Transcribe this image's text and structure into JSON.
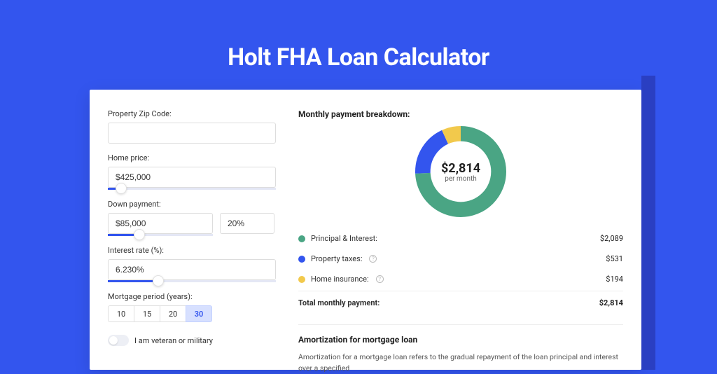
{
  "page": {
    "title": "Holt FHA Loan Calculator",
    "background_color": "#3355ee",
    "accent_color": "#2a3fc2"
  },
  "form": {
    "zip": {
      "label": "Property Zip Code:",
      "value": ""
    },
    "home_price": {
      "label": "Home price:",
      "value": "$425,000",
      "slider_pct": 8
    },
    "down_payment": {
      "label": "Down payment:",
      "amount": "$85,000",
      "pct": "20%",
      "slider_pct": 30
    },
    "interest_rate": {
      "label": "Interest rate (%):",
      "value": "6.230%",
      "slider_pct": 30
    },
    "mortgage_period": {
      "label": "Mortgage period (years):",
      "options": [
        "10",
        "15",
        "20",
        "30"
      ],
      "selected": "30"
    },
    "veteran": {
      "label": "I am veteran or military",
      "value": false
    }
  },
  "breakdown": {
    "title": "Monthly payment breakdown:",
    "center_amount": "$2,814",
    "center_sub": "per month",
    "donut": {
      "type": "donut",
      "radius": 50,
      "stroke_width": 20,
      "background_color": "#ffffff",
      "segments": [
        {
          "label": "Principal & Interest:",
          "value": "$2,089",
          "numeric": 2089,
          "color": "#4aa584"
        },
        {
          "label": "Property taxes:",
          "value": "$531",
          "numeric": 531,
          "color": "#3355ee",
          "info": true
        },
        {
          "label": "Home insurance:",
          "value": "$194",
          "numeric": 194,
          "color": "#f2c94c",
          "info": true
        }
      ],
      "total_numeric": 2814
    },
    "total_label": "Total monthly payment:",
    "total_value": "$2,814"
  },
  "amortization": {
    "title": "Amortization for mortgage loan",
    "text": "Amortization for a mortgage loan refers to the gradual repayment of the loan principal and interest over a specified"
  }
}
